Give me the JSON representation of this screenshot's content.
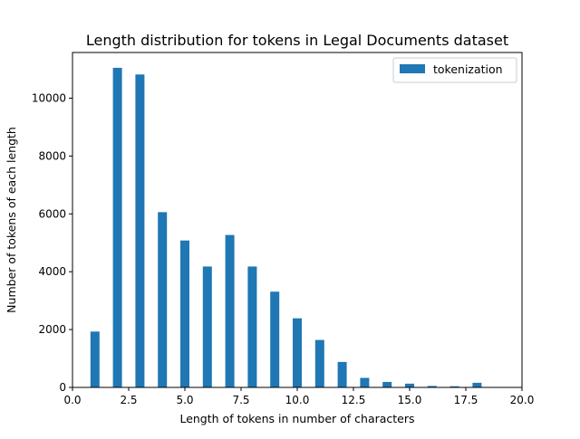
{
  "chart_data": {
    "type": "bar",
    "title": "Length distribution for tokens in Legal Documents dataset",
    "xlabel": "Length of tokens in number of characters",
    "ylabel": "Number of tokens of each length",
    "xlim": [
      0,
      20
    ],
    "ylim": [
      0,
      11580
    ],
    "x_ticks": [
      0,
      2.5,
      5,
      7.5,
      10,
      12.5,
      15,
      17.5,
      20
    ],
    "x_tick_labels": [
      "0.0",
      "2.5",
      "5.0",
      "7.5",
      "10.0",
      "12.5",
      "15.0",
      "17.5",
      "20.0"
    ],
    "y_ticks": [
      0,
      2000,
      4000,
      6000,
      8000,
      10000
    ],
    "y_tick_labels": [
      "0",
      "2000",
      "4000",
      "6000",
      "8000",
      "10000"
    ],
    "grid": false,
    "legend_position": "top-right",
    "series": [
      {
        "name": "tokenization",
        "color": "#1f77b4",
        "x": [
          1,
          2,
          3,
          4,
          5,
          6,
          7,
          8,
          9,
          10,
          11,
          12,
          13,
          14,
          15,
          16,
          17,
          18
        ],
        "values": [
          1930,
          11050,
          10820,
          6060,
          5080,
          4180,
          5270,
          4180,
          3310,
          2390,
          1640,
          880,
          330,
          190,
          130,
          50,
          40,
          160
        ]
      }
    ]
  }
}
